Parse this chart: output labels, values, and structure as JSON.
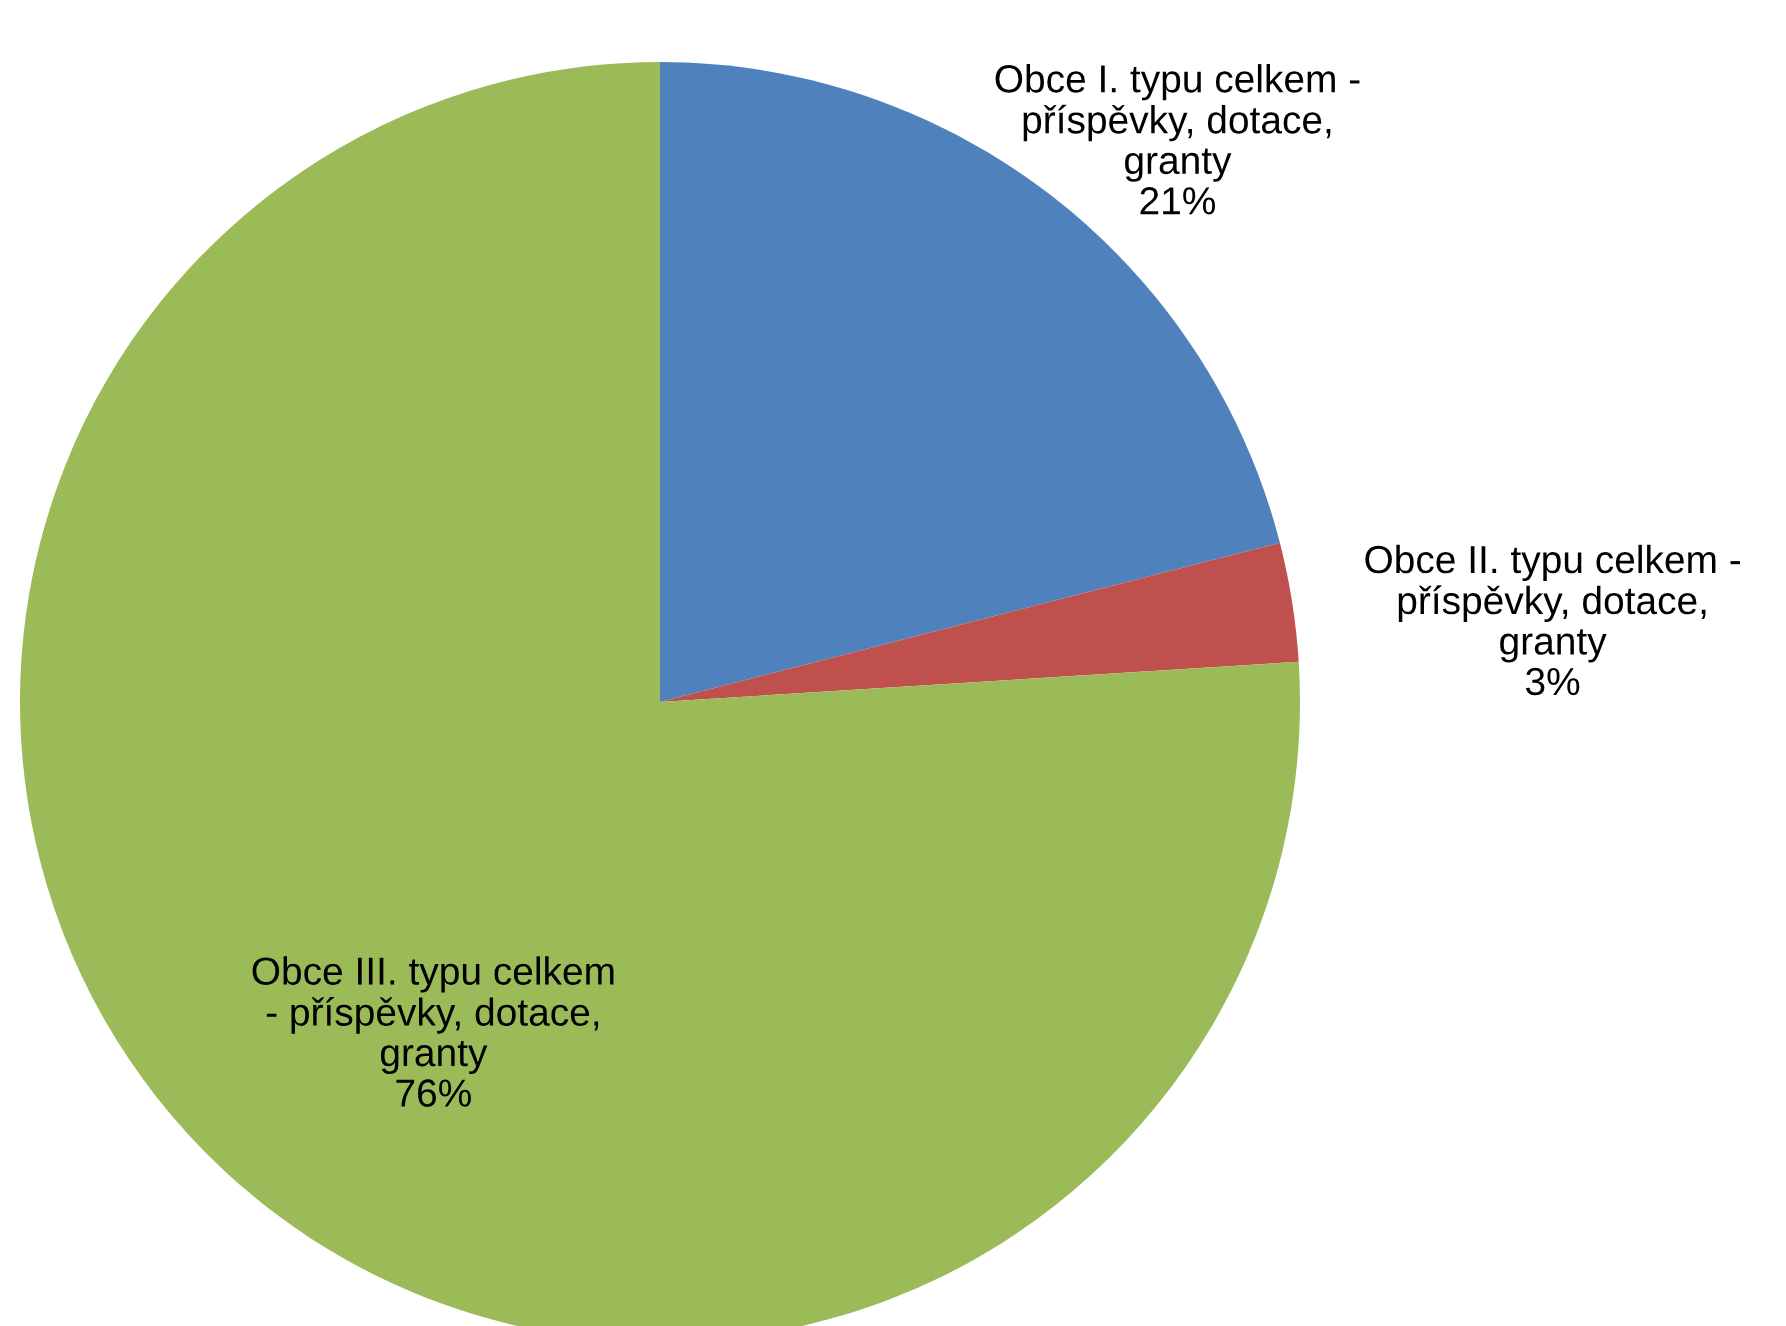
{
  "chart_data": {
    "type": "pie",
    "categories": [
      "Obce I. typu celkem -\npříspěvky, dotace,\ngranty",
      "Obce II. typu celkem -\npříspěvky, dotace,\ngranty",
      "Obce III. typu celkem\n- příspěvky, dotace,\ngranty"
    ],
    "values": [
      21,
      3,
      76
    ],
    "colors": [
      "#4f81bd",
      "#c0504d",
      "#9bbb59"
    ],
    "value_labels": [
      "21%",
      "3%",
      "76%"
    ],
    "legend": false
  }
}
